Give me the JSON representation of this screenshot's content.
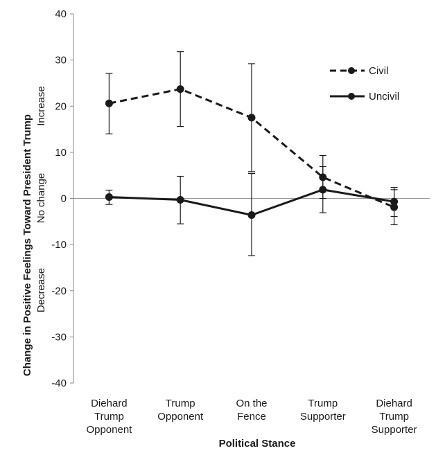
{
  "chart_data": {
    "type": "line",
    "xlabel": "Political Stance",
    "ylabel": "Change in Positive Feelings Toward President Trump",
    "ylabel_annotations": [
      "Increase",
      "No change",
      "Decrease"
    ],
    "ylim": [
      -40,
      40
    ],
    "yticks": [
      40,
      30,
      20,
      10,
      0,
      -10,
      -20,
      -30,
      -40
    ],
    "zero_line": true,
    "grid": false,
    "legend_position": "top-right",
    "categories": [
      [
        "Diehard",
        "Trump",
        "Opponent"
      ],
      [
        "Trump",
        "Opponent"
      ],
      [
        "On the",
        "Fence"
      ],
      [
        "Trump",
        "Supporter"
      ],
      [
        "Diehard",
        "Trump",
        "Supporter"
      ]
    ],
    "series": [
      {
        "name": "Civil",
        "style": "dashed",
        "color": "#1a1a1a",
        "values": [
          20.6,
          23.7,
          17.5,
          4.6,
          -1.9
        ],
        "error_low": [
          14.0,
          15.6,
          5.8,
          0.0,
          -5.7
        ],
        "error_high": [
          27.1,
          31.8,
          29.2,
          9.3,
          1.9
        ]
      },
      {
        "name": "Uncivil",
        "style": "solid",
        "color": "#1a1a1a",
        "values": [
          0.3,
          -0.3,
          -3.6,
          1.9,
          -0.7
        ],
        "error_low": [
          -1.3,
          -5.5,
          -12.4,
          -3.1,
          -3.9
        ],
        "error_high": [
          1.8,
          4.8,
          5.4,
          6.9,
          2.4
        ]
      }
    ]
  }
}
